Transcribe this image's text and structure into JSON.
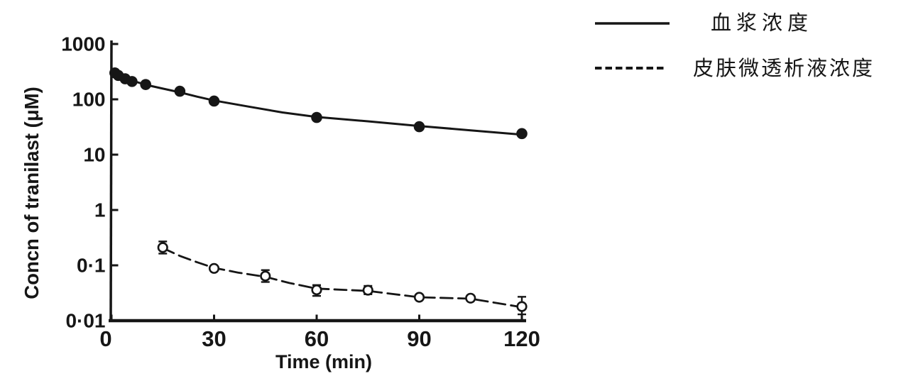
{
  "figure": {
    "background": "#ffffff",
    "ink_color": "#161616"
  },
  "chart_data": {
    "type": "scatter",
    "log_y": true,
    "title": "",
    "xlabel": "Time (min)",
    "ylabel": "Concn of tranilast (μM)",
    "xlim": [
      0,
      120
    ],
    "ylim": [
      0.01,
      1000
    ],
    "grid": false,
    "legend_position": "top-right-outside",
    "x_ticks": [
      {
        "value": 0,
        "label": "0"
      },
      {
        "value": 30,
        "label": "30"
      },
      {
        "value": 60,
        "label": "60"
      },
      {
        "value": 90,
        "label": "90"
      },
      {
        "value": 120,
        "label": "120"
      }
    ],
    "y_ticks": [
      {
        "value": 1000,
        "label": "1000"
      },
      {
        "value": 100,
        "label": "100"
      },
      {
        "value": 10,
        "label": "10"
      },
      {
        "value": 1,
        "label": "1"
      },
      {
        "value": 0.1,
        "label": "0·1"
      },
      {
        "value": 0.01,
        "label": "0·01"
      }
    ],
    "legend": [
      {
        "label": "血浆浓度",
        "line_style": "solid"
      },
      {
        "label": "皮肤微透析液浓度",
        "line_style": "dashed"
      }
    ],
    "series": [
      {
        "id": "plasma",
        "name": "血浆浓度",
        "line_style": "solid",
        "marker": "filled-circle",
        "points": [
          {
            "t": 1,
            "v": 300
          },
          {
            "t": 2,
            "v": 270
          },
          {
            "t": 4,
            "v": 235
          },
          {
            "t": 6,
            "v": 210
          },
          {
            "t": 10,
            "v": 185
          },
          {
            "t": 20,
            "v": 140
          },
          {
            "t": 30,
            "v": 93
          },
          {
            "t": 60,
            "v": 47
          },
          {
            "t": 90,
            "v": 32
          },
          {
            "t": 120,
            "v": 24
          }
        ],
        "fit_line": [
          [
            0,
            330
          ],
          [
            3,
            262
          ],
          [
            6,
            218
          ],
          [
            10,
            183
          ],
          [
            15,
            156
          ],
          [
            20,
            134
          ],
          [
            25,
            112
          ],
          [
            30,
            95
          ],
          [
            40,
            74
          ],
          [
            50,
            58
          ],
          [
            60,
            48
          ],
          [
            75,
            40
          ],
          [
            90,
            33
          ],
          [
            105,
            27.5
          ],
          [
            120,
            23
          ]
        ]
      },
      {
        "id": "skin-microdialysate",
        "name": "皮肤微透析液浓度",
        "line_style": "dashed",
        "marker": "open-circle",
        "points": [
          {
            "t": 15,
            "v": 0.21,
            "err_hi": 0.27,
            "err_lo": 0.163
          },
          {
            "t": 30,
            "v": 0.088
          },
          {
            "t": 45,
            "v": 0.064,
            "err_hi": 0.082,
            "err_lo": 0.05
          },
          {
            "t": 60,
            "v": 0.036,
            "err_hi": 0.044,
            "err_lo": 0.028
          },
          {
            "t": 75,
            "v": 0.0355,
            "err_hi": 0.0425,
            "err_lo": 0.03
          },
          {
            "t": 90,
            "v": 0.0265
          },
          {
            "t": 105,
            "v": 0.0255
          },
          {
            "t": 120,
            "v": 0.018,
            "err_hi": 0.027,
            "err_lo": 0.013
          }
        ],
        "fit_line": [
          [
            15,
            0.205
          ],
          [
            20,
            0.148
          ],
          [
            25,
            0.114
          ],
          [
            30,
            0.09
          ],
          [
            37,
            0.074
          ],
          [
            45,
            0.062
          ],
          [
            52,
            0.048
          ],
          [
            60,
            0.038
          ],
          [
            75,
            0.0345
          ],
          [
            90,
            0.0265
          ],
          [
            105,
            0.025
          ],
          [
            120,
            0.0175
          ]
        ]
      }
    ]
  }
}
